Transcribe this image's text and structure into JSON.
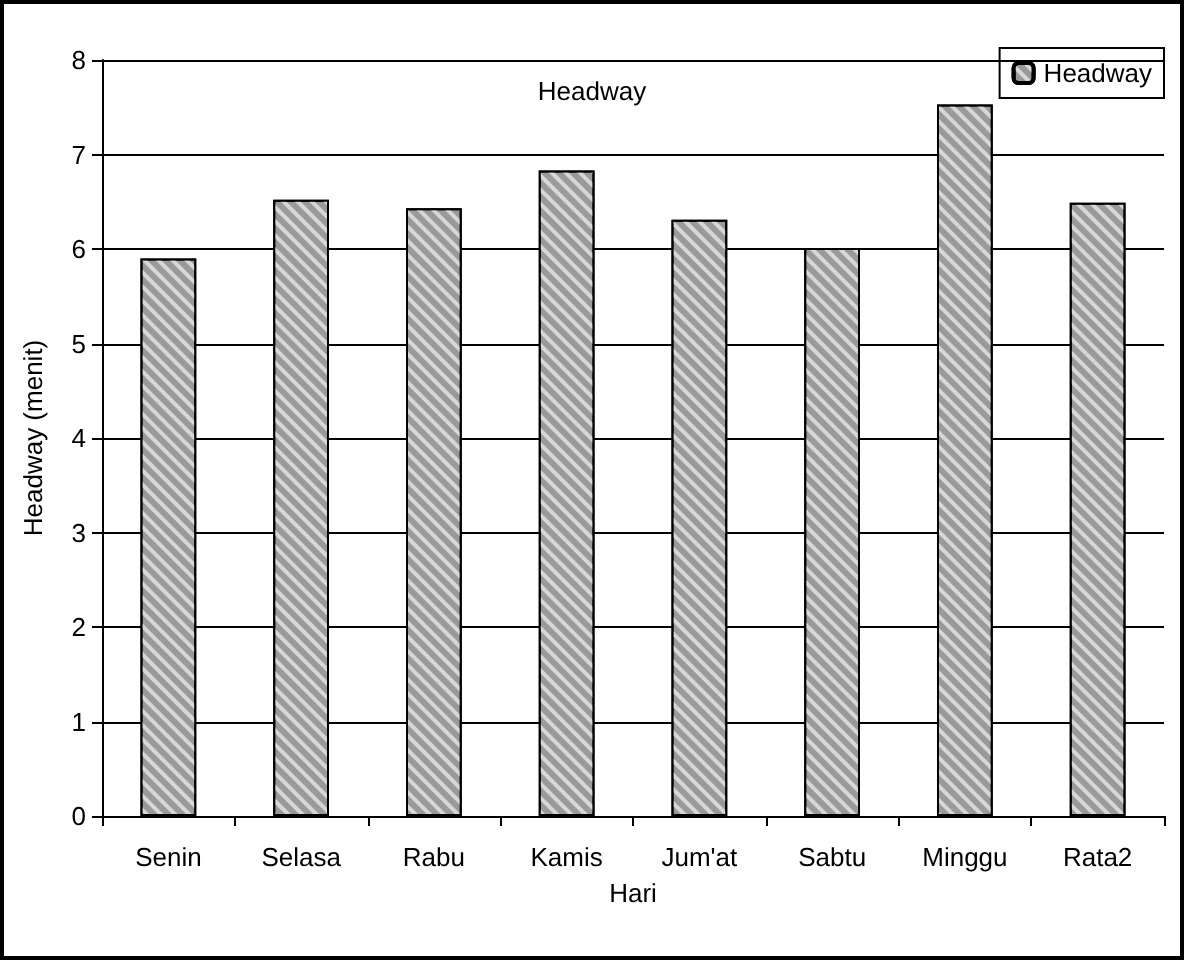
{
  "chart_data": {
    "type": "bar",
    "title": "Headway",
    "xlabel": "Hari",
    "ylabel": "Headway (menit)",
    "categories": [
      "Senin",
      "Selasa",
      "Rabu",
      "Kamis",
      "Jum'at",
      "Sabtu",
      "Minggu",
      "Rata2"
    ],
    "series": [
      {
        "name": "Headway",
        "color": "#9a9a9a",
        "values": [
          5.9,
          6.52,
          6.43,
          6.83,
          6.31,
          6.01,
          7.53,
          6.49
        ]
      }
    ],
    "ylim": [
      0,
      8
    ],
    "yticks": [
      0,
      1,
      2,
      3,
      4,
      5,
      6,
      7,
      8
    ],
    "grid": "y",
    "legend": "top right"
  }
}
